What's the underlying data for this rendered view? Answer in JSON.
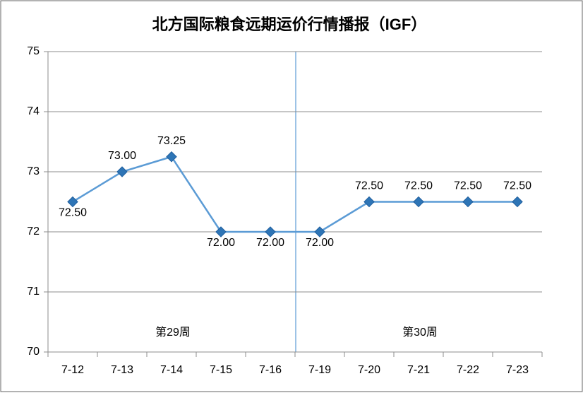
{
  "chart_data": {
    "type": "line",
    "title": "北方国际粮食远期运价行情播报（IGF）",
    "categories": [
      "7-12",
      "7-13",
      "7-14",
      "7-15",
      "7-16",
      "7-19",
      "7-20",
      "7-21",
      "7-22",
      "7-23"
    ],
    "series": [
      {
        "name": "IGF",
        "color": "#5b9bd5",
        "values": [
          72.5,
          73,
          73.25,
          72,
          72,
          72,
          72.5,
          72.5,
          72.5,
          72.5
        ],
        "value_labels": [
          "72.50",
          "73.00",
          "73.25",
          "72.00",
          "72.00",
          "72.00",
          "72.50",
          "72.50",
          "72.50",
          "72.50"
        ]
      }
    ],
    "ylim": [
      70,
      75
    ],
    "yticks": [
      70,
      71,
      72,
      73,
      74,
      75
    ],
    "grid": true,
    "annotations": [
      "第29周",
      "第30周"
    ]
  }
}
